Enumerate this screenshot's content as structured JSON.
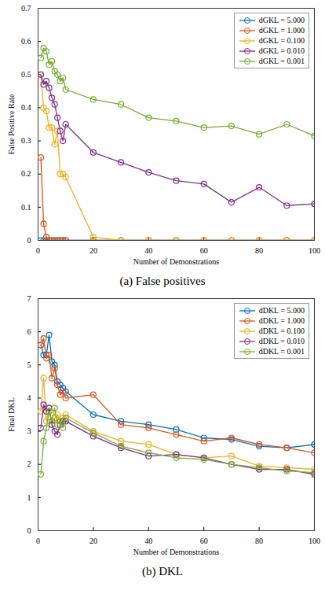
{
  "chart_data": [
    {
      "type": "line",
      "title": "(a) False positives",
      "x_label": "Number of Demonstrations",
      "y_label": "False Positive Rate",
      "x": [
        1,
        2,
        3,
        4,
        5,
        6,
        7,
        8,
        9,
        10,
        20,
        30,
        40,
        50,
        60,
        70,
        80,
        90,
        100
      ],
      "xlim": [
        0,
        100
      ],
      "xticks": [
        0,
        20,
        40,
        60,
        80,
        100
      ],
      "ylim": [
        0,
        0.7
      ],
      "yticks": [
        0,
        0.1,
        0.2,
        0.3,
        0.4,
        0.5,
        0.6,
        0.7
      ],
      "legend": "top-right",
      "marker": "circle",
      "grid": false,
      "series": [
        {
          "name": "dGKL = 5.000",
          "color": "#0072BD",
          "values": [
            0,
            0,
            0,
            0,
            0,
            0,
            0,
            0,
            0,
            0,
            0,
            0,
            0,
            0,
            0,
            0,
            0,
            0,
            0
          ]
        },
        {
          "name": "dGKL = 1.000",
          "color": "#D95319",
          "values": [
            0.25,
            0.05,
            0.01,
            0,
            0,
            0,
            0,
            0,
            0,
            0,
            0,
            0,
            0,
            0,
            0,
            0,
            0,
            0,
            0
          ]
        },
        {
          "name": "dGKL = 0.100",
          "color": "#EDB120",
          "values": [
            0.5,
            0.4,
            0.39,
            0.34,
            0.34,
            0.29,
            0.33,
            0.2,
            0.2,
            0.19,
            0.01,
            0,
            0,
            0,
            0,
            0,
            0,
            0,
            0
          ]
        },
        {
          "name": "dGKL = 0.010",
          "color": "#7E2F8E",
          "values": [
            0.5,
            0.47,
            0.48,
            0.46,
            0.43,
            0.41,
            0.37,
            0.33,
            0.3,
            0.35,
            0.265,
            0.235,
            0.205,
            0.18,
            0.17,
            0.115,
            0.16,
            0.105,
            0.11
          ]
        },
        {
          "name": "dGKL = 0.001",
          "color": "#77AC30",
          "values": [
            0.55,
            0.58,
            0.57,
            0.53,
            0.54,
            0.51,
            0.5,
            0.48,
            0.49,
            0.455,
            0.425,
            0.41,
            0.37,
            0.36,
            0.34,
            0.345,
            0.32,
            0.35,
            0.315
          ]
        }
      ]
    },
    {
      "type": "line",
      "title": "(b) DKL",
      "x_label": "Number of Demonstrations",
      "y_label": "Final DKL",
      "x": [
        1,
        2,
        3,
        4,
        5,
        6,
        7,
        8,
        9,
        10,
        20,
        30,
        40,
        50,
        60,
        70,
        80,
        90,
        100
      ],
      "xlim": [
        0,
        100
      ],
      "xticks": [
        0,
        20,
        40,
        60,
        80,
        100
      ],
      "ylim": [
        0,
        7
      ],
      "yticks": [
        0,
        1,
        2,
        3,
        4,
        5,
        6,
        7
      ],
      "legend": "top-right",
      "marker": "circle",
      "grid": false,
      "series": [
        {
          "name": "dDKL = 5.000",
          "color": "#0072BD",
          "values": [
            5.6,
            5.3,
            5.3,
            5.9,
            5.1,
            5.0,
            4.5,
            4.4,
            4.3,
            4.2,
            3.5,
            3.3,
            3.2,
            3.05,
            2.8,
            2.75,
            2.55,
            2.5,
            2.6
          ]
        },
        {
          "name": "dDKL = 1.000",
          "color": "#D95319",
          "values": [
            5.6,
            5.8,
            5.2,
            5.3,
            4.6,
            4.9,
            4.4,
            4.1,
            4.2,
            4.0,
            4.1,
            3.2,
            3.1,
            2.9,
            2.7,
            2.8,
            2.6,
            2.5,
            2.35
          ]
        },
        {
          "name": "dDKL = 0.100",
          "color": "#EDB120",
          "values": [
            3.6,
            4.6,
            3.3,
            3.7,
            3.2,
            3.4,
            3.5,
            3.3,
            3.4,
            3.5,
            3.0,
            2.7,
            2.6,
            2.3,
            2.2,
            2.25,
            1.95,
            1.9,
            1.85
          ]
        },
        {
          "name": "dDKL = 0.010",
          "color": "#7E2F8E",
          "values": [
            3.1,
            3.8,
            3.6,
            3.7,
            3.2,
            3.0,
            2.9,
            3.2,
            3.3,
            3.3,
            2.85,
            2.5,
            2.25,
            2.3,
            2.2,
            2.0,
            1.85,
            1.85,
            1.7
          ]
        },
        {
          "name": "dDKL = 0.001",
          "color": "#77AC30",
          "values": [
            1.7,
            2.7,
            3.1,
            3.6,
            3.3,
            3.7,
            3.2,
            3.3,
            3.1,
            3.4,
            2.95,
            2.55,
            2.35,
            2.2,
            2.15,
            2.0,
            1.9,
            1.8,
            1.75
          ]
        }
      ]
    }
  ]
}
